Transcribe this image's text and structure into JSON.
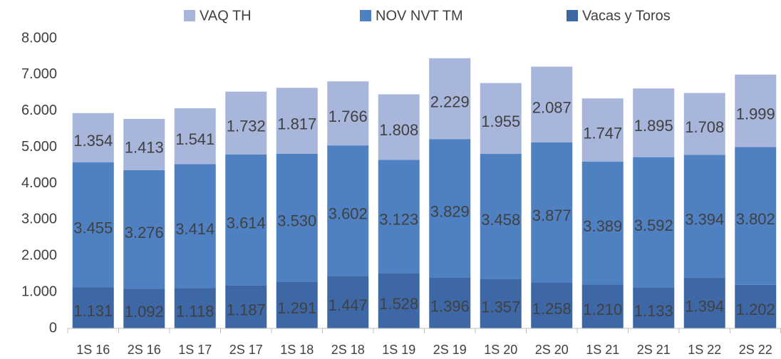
{
  "chart_data": {
    "type": "stacked_bar",
    "categories": [
      "1S 16",
      "2S 16",
      "1S 17",
      "2S 17",
      "1S 18",
      "2S 18",
      "1S 19",
      "2S 19",
      "1S 20",
      "2S 20",
      "1S 21",
      "2S 21",
      "1S 22",
      "2S 22"
    ],
    "series": [
      {
        "name": "VAQ TH",
        "color": "#a7b6da",
        "values": [
          1354,
          1413,
          1541,
          1732,
          1817,
          1766,
          1808,
          2229,
          1955,
          2087,
          1747,
          1895,
          1708,
          1999
        ],
        "value_labels": [
          "1.354",
          "1.413",
          "1.541",
          "1.732",
          "1.817",
          "1.766",
          "1.808",
          "2.229",
          "1.955",
          "2.087",
          "1.747",
          "1.895",
          "1.708",
          "1.999"
        ]
      },
      {
        "name": "NOV NVT TM",
        "color": "#4f81c2",
        "values": [
          3455,
          3276,
          3414,
          3614,
          3530,
          3602,
          3123,
          3829,
          3458,
          3877,
          3389,
          3592,
          3394,
          3802
        ],
        "value_labels": [
          "3.455",
          "3.276",
          "3.414",
          "3.614",
          "3.530",
          "3.602",
          "3.123",
          "3.829",
          "3.458",
          "3.877",
          "3.389",
          "3.592",
          "3.394",
          "3.802"
        ]
      },
      {
        "name": "Vacas y Toros",
        "color": "#3e67a6",
        "values": [
          1131,
          1092,
          1118,
          1187,
          1291,
          1447,
          1528,
          1396,
          1357,
          1258,
          1210,
          1133,
          1394,
          1202
        ],
        "value_labels": [
          "1.131",
          "1.092",
          "1.118",
          "1.187",
          "1.291",
          "1.447",
          "1.528",
          "1.396",
          "1.357",
          "1.258",
          "1.210",
          "1.133",
          "1.394",
          "1.202"
        ]
      }
    ],
    "ylim": [
      0,
      8000
    ],
    "yticks": [
      0,
      {
        "value": 1000,
        "label": "1.000"
      },
      {
        "value": 2000,
        "label": "2.000"
      },
      {
        "value": 3000,
        "label": "3.000"
      },
      {
        "value": 4000,
        "label": "4.000"
      },
      {
        "value": 5000,
        "label": "5.000"
      },
      {
        "value": 6000,
        "label": "6.000"
      },
      {
        "value": 7000,
        "label": "7.000"
      },
      {
        "value": 8000,
        "label": "8.000"
      }
    ],
    "grid": false,
    "legend": "top"
  }
}
